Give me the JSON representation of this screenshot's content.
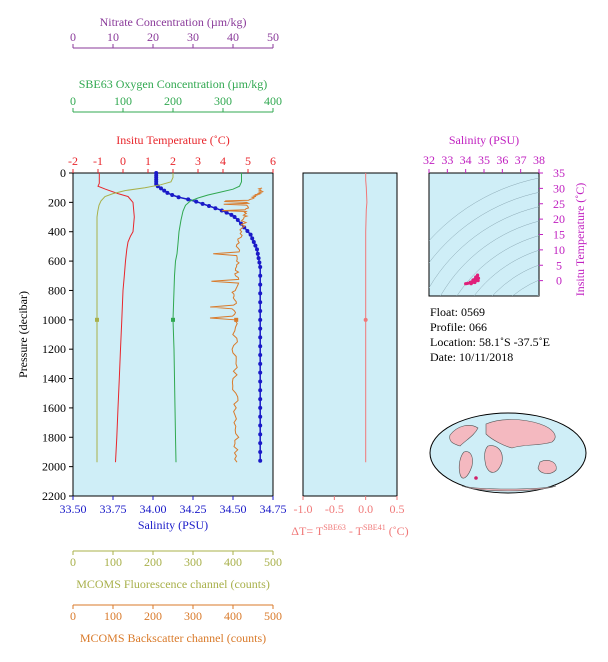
{
  "chart_data": [
    {
      "type": "line",
      "colors": {
        "background": "#cfeef7",
        "temperature": "#e8262c",
        "salinity": "#1a1ac8",
        "oxygen": "#30a850",
        "nitrate": "#8a3a9a",
        "fluorescence": "#a8b04a",
        "backscatter": "#d97a2a"
      },
      "axes": {
        "nitrate": {
          "label": "Nitrate Concentration (µm/kg)",
          "range": [
            0,
            50
          ],
          "ticks": [
            0,
            10,
            20,
            30,
            40,
            50
          ]
        },
        "oxygen": {
          "label": "SBE63 Oxygen Concentration (µm/kg)",
          "range": [
            0,
            400
          ],
          "ticks": [
            0,
            100,
            200,
            300,
            400
          ]
        },
        "temperature": {
          "label": "Insitu Temperature (˚C)",
          "range": [
            -2,
            6
          ],
          "ticks": [
            -2,
            -1,
            0,
            1,
            2,
            3,
            4,
            5,
            6
          ]
        },
        "pressure": {
          "label": "Pressure (decibar)",
          "range": [
            0,
            2200
          ],
          "inverted": true,
          "ticks": [
            0,
            200,
            400,
            600,
            800,
            1000,
            1200,
            1400,
            1600,
            1800,
            2000,
            2200
          ]
        },
        "salinity": {
          "label": "Salinity (PSU)",
          "range": [
            33.5,
            34.75
          ],
          "ticks": [
            "33.50",
            "33.75",
            "34.00",
            "34.25",
            "34.50",
            "34.75"
          ]
        },
        "fluorescence": {
          "label": "MCOMS Fluorescence channel (counts)",
          "range": [
            0,
            500
          ],
          "ticks": [
            0,
            100,
            200,
            300,
            400,
            500
          ]
        },
        "backscatter": {
          "label": "MCOMS Backscatter channel (counts)",
          "range": [
            0,
            500
          ],
          "ticks": [
            0,
            100,
            200,
            300,
            400,
            500
          ]
        }
      },
      "series": [
        {
          "name": "Salinity (PSU)",
          "axis": "salinity",
          "markers": true,
          "points": [
            [
              34.02,
              0
            ],
            [
              34.02,
              15
            ],
            [
              34.02,
              30
            ],
            [
              34.02,
              45
            ],
            [
              34.02,
              60
            ],
            [
              34.02,
              75
            ],
            [
              34.03,
              90
            ],
            [
              34.05,
              105
            ],
            [
              34.07,
              120
            ],
            [
              34.09,
              135
            ],
            [
              34.12,
              150
            ],
            [
              34.16,
              165
            ],
            [
              34.22,
              180
            ],
            [
              34.27,
              195
            ],
            [
              34.31,
              210
            ],
            [
              34.35,
              225
            ],
            [
              34.39,
              240
            ],
            [
              34.43,
              255
            ],
            [
              34.46,
              270
            ],
            [
              34.49,
              285
            ],
            [
              34.51,
              300
            ],
            [
              34.53,
              320
            ],
            [
              34.55,
              345
            ],
            [
              34.57,
              370
            ],
            [
              34.59,
              395
            ],
            [
              34.61,
              420
            ],
            [
              34.62,
              445
            ],
            [
              34.63,
              470
            ],
            [
              34.64,
              495
            ],
            [
              34.65,
              520
            ],
            [
              34.655,
              550
            ],
            [
              34.66,
              580
            ],
            [
              34.665,
              610
            ],
            [
              34.67,
              640
            ],
            [
              34.67,
              700
            ],
            [
              34.67,
              760
            ],
            [
              34.67,
              820
            ],
            [
              34.67,
              880
            ],
            [
              34.67,
              940
            ],
            [
              34.67,
              1000
            ],
            [
              34.67,
              1060
            ],
            [
              34.67,
              1120
            ],
            [
              34.67,
              1180
            ],
            [
              34.67,
              1240
            ],
            [
              34.67,
              1300
            ],
            [
              34.67,
              1360
            ],
            [
              34.67,
              1420
            ],
            [
              34.67,
              1480
            ],
            [
              34.67,
              1540
            ],
            [
              34.67,
              1600
            ],
            [
              34.67,
              1660
            ],
            [
              34.67,
              1720
            ],
            [
              34.67,
              1780
            ],
            [
              34.67,
              1840
            ],
            [
              34.67,
              1900
            ],
            [
              34.67,
              1960
            ]
          ]
        },
        {
          "name": "Insitu Temperature (˚C)",
          "axis": "temperature",
          "points": [
            [
              -0.95,
              0
            ],
            [
              -0.95,
              40
            ],
            [
              -0.95,
              70
            ],
            [
              -1.0,
              90
            ],
            [
              -0.7,
              110
            ],
            [
              -0.2,
              140
            ],
            [
              0.2,
              160
            ],
            [
              0.4,
              200
            ],
            [
              0.45,
              300
            ],
            [
              0.4,
              400
            ],
            [
              0.3,
              430
            ],
            [
              0.2,
              470
            ],
            [
              0.15,
              520
            ],
            [
              0.1,
              600
            ],
            [
              0.05,
              700
            ],
            [
              0.0,
              800
            ],
            [
              -0.05,
              1000
            ],
            [
              -0.1,
              1200
            ],
            [
              -0.15,
              1400
            ],
            [
              -0.2,
              1600
            ],
            [
              -0.25,
              1800
            ],
            [
              -0.3,
              1970
            ]
          ]
        },
        {
          "name": "SBE63 Oxygen Concentration (µm/kg)",
          "axis": "oxygen",
          "points": [
            [
              337,
              0
            ],
            [
              337,
              60
            ],
            [
              333,
              90
            ],
            [
              320,
              110
            ],
            [
              295,
              130
            ],
            [
              270,
              150
            ],
            [
              250,
              170
            ],
            [
              235,
              190
            ],
            [
              225,
              220
            ],
            [
              220,
              260
            ],
            [
              216,
              320
            ],
            [
              212,
              400
            ],
            [
              210,
              480
            ],
            [
              208,
              550
            ],
            [
              205,
              600
            ],
            [
              203,
              700
            ],
            [
              202,
              800
            ],
            [
              201,
              900
            ],
            [
              200,
              1000
            ],
            [
              201,
              1100
            ],
            [
              202,
              1200
            ],
            [
              203,
              1400
            ],
            [
              204,
              1600
            ],
            [
              205,
              1800
            ],
            [
              206,
              1970
            ]
          ]
        },
        {
          "name": "MCOMS Fluorescence channel (counts)",
          "axis": "fluorescence",
          "points": [
            [
              250,
              0
            ],
            [
              250,
              30
            ],
            [
              245,
              60
            ],
            [
              220,
              80
            ],
            [
              180,
              100
            ],
            [
              130,
              120
            ],
            [
              100,
              140
            ],
            [
              80,
              160
            ],
            [
              70,
              190
            ],
            [
              65,
              220
            ],
            [
              62,
              260
            ],
            [
              60,
              300
            ],
            [
              60,
              400
            ],
            [
              60,
              500
            ],
            [
              60,
              600
            ],
            [
              60,
              800
            ],
            [
              60,
              1000
            ],
            [
              60,
              1200
            ],
            [
              60,
              1400
            ],
            [
              60,
              1600
            ],
            [
              60,
              1800
            ],
            [
              60,
              1970
            ]
          ]
        },
        {
          "name": "MCOMS Backscatter channel (counts)",
          "axis": "backscatter",
          "noisy": true,
          "points": [
            [
              470,
              100
            ],
            [
              470,
              130
            ],
            [
              455,
              160
            ],
            [
              440,
              200
            ],
            [
              435,
              250
            ],
            [
              430,
              300
            ],
            [
              420,
              400
            ],
            [
              415,
              500
            ],
            [
              410,
              600
            ],
            [
              410,
              700
            ],
            [
              405,
              800
            ],
            [
              405,
              900
            ],
            [
              405,
              1000
            ],
            [
              405,
              1200
            ],
            [
              405,
              1400
            ],
            [
              408,
              1600
            ],
            [
              410,
              1800
            ],
            [
              410,
              1970
            ]
          ]
        }
      ],
      "markers": [
        {
          "axis": "fluorescence",
          "x": 60,
          "y": 1000
        },
        {
          "axis": "oxygen",
          "x": 200,
          "y": 1000
        },
        {
          "axis": "backscatter",
          "x": 408,
          "y": 1000
        }
      ]
    },
    {
      "type": "line",
      "xlabel_prefix": "ΔT= T",
      "xlabel_sup1": "SBE63",
      "xlabel_mid": " - T",
      "xlabel_sup2": "SBE41",
      "xlabel_suffix": " (˚C)",
      "xrange": [
        -1.0,
        0.5
      ],
      "xticks": [
        "-1.0",
        "-0.5",
        "0.0",
        "0.5"
      ],
      "yrange": [
        0,
        2200
      ],
      "series": [
        {
          "points": [
            [
              0.0,
              0
            ],
            [
              0.0,
              50
            ],
            [
              0.01,
              100
            ],
            [
              0.02,
              200
            ],
            [
              0.01,
              250
            ],
            [
              0.0,
              400
            ],
            [
              0.0,
              600
            ],
            [
              0.0,
              800
            ],
            [
              0.0,
              1000
            ],
            [
              0.0,
              1200
            ],
            [
              0.0,
              1400
            ],
            [
              0.0,
              1600
            ],
            [
              0.0,
              1800
            ],
            [
              0.0,
              1970
            ]
          ]
        }
      ],
      "marker": {
        "x": 0.0,
        "y": 1000
      }
    },
    {
      "type": "scatter",
      "xlabel": "Salinity (PSU)",
      "ylabel": "Insitu Temperature (˚C)",
      "xrange": [
        32,
        38
      ],
      "xticks": [
        32,
        33,
        34,
        35,
        36,
        37,
        38
      ],
      "yrange": [
        -5,
        35
      ],
      "yticks": [
        0,
        5,
        10,
        15,
        20,
        25,
        30,
        35
      ],
      "points": [
        [
          34.0,
          -1.0
        ],
        [
          34.1,
          -0.9
        ],
        [
          34.25,
          -0.5
        ],
        [
          34.4,
          0.2
        ],
        [
          34.55,
          1.2
        ],
        [
          34.65,
          1.8
        ],
        [
          34.7,
          0.8
        ],
        [
          34.68,
          0.0
        ],
        [
          34.5,
          -0.6
        ],
        [
          34.3,
          -1.0
        ]
      ]
    }
  ],
  "float_info": {
    "float": "Float:  0569",
    "profile": "Profile:  066",
    "location": "Location:  58.1˚S  -37.5˚E",
    "date": "Date:  10/11/2018"
  }
}
